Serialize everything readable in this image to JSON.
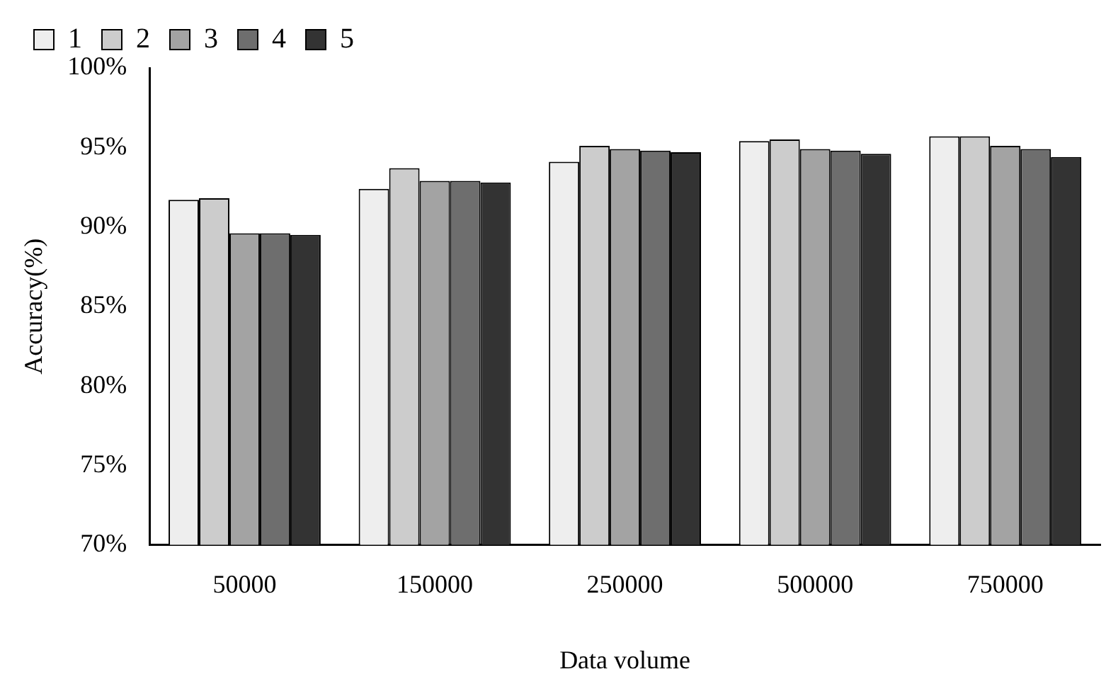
{
  "chart_data": {
    "type": "bar",
    "xlabel": "Data volume",
    "ylabel": "Accuracy(%)",
    "categories": [
      "50000",
      "150000",
      "250000",
      "500000",
      "750000"
    ],
    "series": [
      {
        "name": "1",
        "color": "#eeeeee",
        "values": [
          91.7,
          92.4,
          94.1,
          95.4,
          95.7
        ]
      },
      {
        "name": "2",
        "color": "#cccccc",
        "values": [
          91.8,
          93.7,
          95.1,
          95.5,
          95.7
        ]
      },
      {
        "name": "3",
        "color": "#a3a3a3",
        "values": [
          89.6,
          92.9,
          94.9,
          94.9,
          95.1
        ]
      },
      {
        "name": "4",
        "color": "#6e6e6e",
        "values": [
          89.6,
          92.9,
          94.8,
          94.8,
          94.9
        ]
      },
      {
        "name": "5",
        "color": "#333333",
        "values": [
          89.5,
          92.8,
          94.7,
          94.6,
          94.4
        ]
      }
    ],
    "ylim": [
      70,
      100
    ],
    "yticks": [
      {
        "value": 70,
        "label": "70%"
      },
      {
        "value": 75,
        "label": "75%"
      },
      {
        "value": 80,
        "label": "80%"
      },
      {
        "value": 85,
        "label": "85%"
      },
      {
        "value": 90,
        "label": "90%"
      },
      {
        "value": 95,
        "label": "95%"
      },
      {
        "value": 100,
        "label": "100%"
      }
    ],
    "grid": false,
    "legend": "top left"
  }
}
